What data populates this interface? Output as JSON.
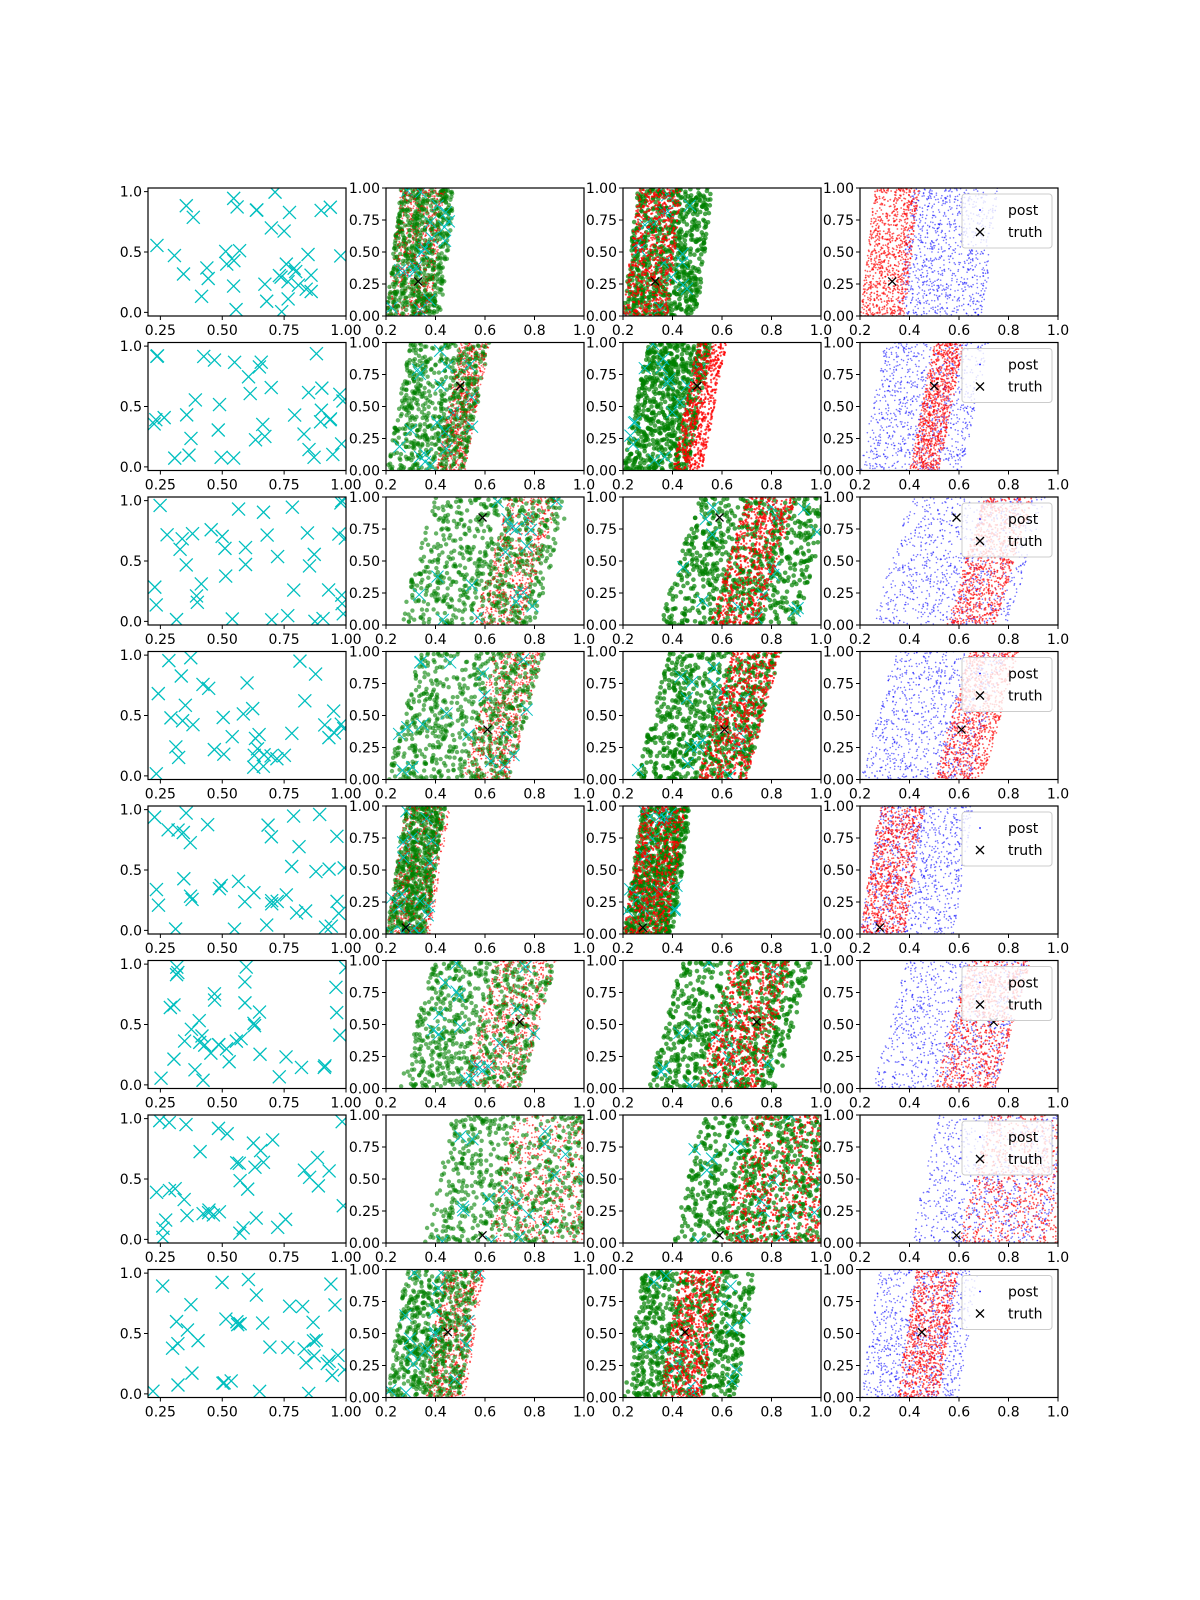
{
  "figure": {
    "rows": 8,
    "cols": 4,
    "colors": {
      "axis": "#000000",
      "observed_marker": "#00bfbf",
      "posterior_a": "#ff0000",
      "posterior_b": "#008000",
      "posterior_c": "#0000ff",
      "truth": "#000000"
    }
  },
  "chart_data": {
    "type": "scatter",
    "legend": {
      "entries": [
        "post",
        "truth"
      ],
      "placement": "upper-right",
      "panels": "column-4"
    },
    "axes": {
      "column_1": {
        "xlim": [
          0.2,
          1.0
        ],
        "ylim": [
          -0.03,
          1.03
        ],
        "xticks": [
          "0.25",
          "0.50",
          "0.75",
          "1.00"
        ],
        "yticks": [
          "0.0",
          "0.5",
          "1.0"
        ]
      },
      "columns_2_to_4": {
        "xlim": [
          0.2,
          1.0
        ],
        "ylim": [
          0.0,
          1.0
        ],
        "xticks": [
          "0.2",
          "0.4",
          "0.6",
          "0.8",
          "1.0"
        ],
        "yticks": [
          "0.00",
          "0.25",
          "0.50",
          "0.75",
          "1.00"
        ]
      }
    },
    "observed_points_per_panel": 40,
    "truth": [
      {
        "x": 0.33,
        "y": 0.27
      },
      {
        "x": 0.5,
        "y": 0.66
      },
      {
        "x": 0.59,
        "y": 0.84
      },
      {
        "x": 0.61,
        "y": 0.39
      },
      {
        "x": 0.28,
        "y": 0.05
      },
      {
        "x": 0.74,
        "y": 0.52
      },
      {
        "x": 0.59,
        "y": 0.06
      },
      {
        "x": 0.45,
        "y": 0.51
      }
    ],
    "posterior_bands": [
      {
        "red_lo": 0.2,
        "red_hi": 0.38,
        "green_lo": 0.2,
        "green_hi": 0.42,
        "green3_lo": 0.2,
        "green3_hi": 0.5,
        "blue_lo": 0.35,
        "blue_hi": 0.7,
        "slope": 0.06
      },
      {
        "red_lo": 0.4,
        "red_hi": 0.52,
        "green_lo": 0.2,
        "green_hi": 0.52,
        "green3_lo": 0.2,
        "green3_hi": 0.46,
        "blue_lo": 0.2,
        "blue_hi": 0.62,
        "slope": 0.1
      },
      {
        "red_lo": 0.55,
        "red_hi": 0.75,
        "green_lo": 0.25,
        "green_hi": 0.8,
        "green3_lo": 0.35,
        "green3_hi": 0.9,
        "blue_lo": 0.25,
        "blue_hi": 0.8,
        "slope": 0.15
      },
      {
        "red_lo": 0.5,
        "red_hi": 0.7,
        "green_lo": 0.2,
        "green_hi": 0.7,
        "green3_lo": 0.25,
        "green3_hi": 0.7,
        "blue_lo": 0.2,
        "blue_hi": 0.65,
        "slope": 0.14
      },
      {
        "red_lo": 0.2,
        "red_hi": 0.38,
        "green_lo": 0.2,
        "green_hi": 0.36,
        "green3_lo": 0.2,
        "green3_hi": 0.4,
        "blue_lo": 0.2,
        "blue_hi": 0.58,
        "slope": 0.08
      },
      {
        "red_lo": 0.5,
        "red_hi": 0.75,
        "green_lo": 0.25,
        "green_hi": 0.75,
        "green3_lo": 0.3,
        "green3_hi": 0.82,
        "blue_lo": 0.25,
        "blue_hi": 0.75,
        "slope": 0.14
      },
      {
        "red_lo": 0.6,
        "red_hi": 1.0,
        "green_lo": 0.35,
        "green_hi": 1.0,
        "green3_lo": 0.4,
        "green3_hi": 1.0,
        "blue_lo": 0.4,
        "blue_hi": 0.95,
        "slope": 0.12
      },
      {
        "red_lo": 0.35,
        "red_hi": 0.52,
        "green_lo": 0.2,
        "green_hi": 0.5,
        "green3_lo": 0.2,
        "green3_hi": 0.66,
        "blue_lo": 0.2,
        "blue_hi": 0.6,
        "slope": 0.08
      }
    ]
  }
}
